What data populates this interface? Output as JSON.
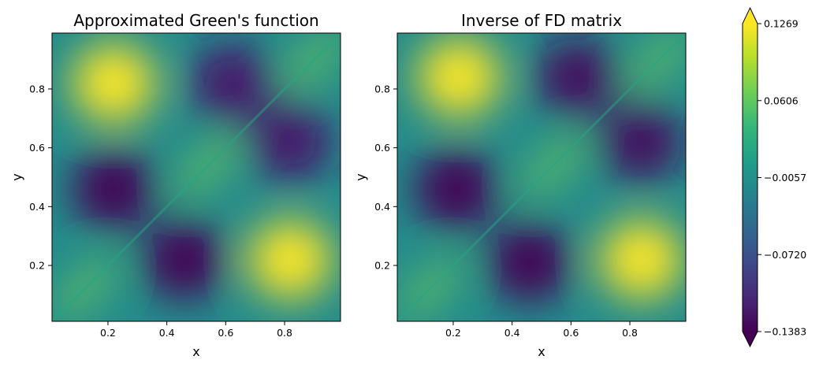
{
  "chart_data": [
    {
      "type": "heatmap",
      "title": "Approximated Green's function",
      "xlabel": "x",
      "ylabel": "y",
      "xlim": [
        0.01,
        0.99
      ],
      "ylim": [
        0.01,
        0.99
      ],
      "xticks": [
        0.2,
        0.4,
        0.6,
        0.8
      ],
      "yticks": [
        0.2,
        0.4,
        0.6,
        0.8
      ],
      "xtick_labels": [
        "0.2",
        "0.4",
        "0.6",
        "0.8"
      ],
      "ytick_labels": [
        "0.2",
        "0.4",
        "0.6",
        "0.8"
      ],
      "features": [
        {
          "x": 0.22,
          "y": 0.82,
          "value": 0.1269
        },
        {
          "x": 0.82,
          "y": 0.22,
          "value": 0.1269
        },
        {
          "x": 0.62,
          "y": 0.82,
          "value": -0.12
        },
        {
          "x": 0.82,
          "y": 0.62,
          "value": -0.12
        },
        {
          "x": 0.22,
          "y": 0.46,
          "value": -0.1383
        },
        {
          "x": 0.46,
          "y": 0.22,
          "value": -0.1383
        },
        {
          "x": 0.54,
          "y": 0.54,
          "value": 0.07
        },
        {
          "x": 0.12,
          "y": 0.12,
          "value": 0.07
        },
        {
          "x": 0.9,
          "y": 0.9,
          "value": 0.07
        }
      ]
    },
    {
      "type": "heatmap",
      "title": "Inverse of FD matrix",
      "xlabel": "x",
      "ylabel": "y",
      "xlim": [
        0.01,
        0.99
      ],
      "ylim": [
        0.01,
        0.99
      ],
      "xticks": [
        0.2,
        0.4,
        0.6,
        0.8
      ],
      "yticks": [
        0.2,
        0.4,
        0.6,
        0.8
      ],
      "xtick_labels": [
        "0.2",
        "0.4",
        "0.6",
        "0.8"
      ],
      "ytick_labels": [
        "0.2",
        "0.4",
        "0.6",
        "0.8"
      ],
      "features": [
        {
          "x": 0.22,
          "y": 0.84,
          "value": 0.1269
        },
        {
          "x": 0.84,
          "y": 0.22,
          "value": 0.1269
        },
        {
          "x": 0.62,
          "y": 0.84,
          "value": -0.13
        },
        {
          "x": 0.84,
          "y": 0.62,
          "value": -0.13
        },
        {
          "x": 0.21,
          "y": 0.46,
          "value": -0.1383
        },
        {
          "x": 0.46,
          "y": 0.21,
          "value": -0.1383
        },
        {
          "x": 0.54,
          "y": 0.54,
          "value": 0.07
        },
        {
          "x": 0.12,
          "y": 0.12,
          "value": 0.07
        },
        {
          "x": 0.9,
          "y": 0.9,
          "value": 0.07
        }
      ]
    }
  ],
  "colorbar": {
    "colormap": "viridis",
    "min": -0.1383,
    "max": 0.1269,
    "extend": "both",
    "ticks": [
      0.1269,
      0.0606,
      -0.0057,
      -0.072,
      -0.1383
    ],
    "tick_labels": [
      "0.1269",
      "0.0606",
      "−0.0057",
      "−0.0720",
      "−0.1383"
    ],
    "colors": [
      "#440154",
      "#482878",
      "#3e4989",
      "#31688e",
      "#26828e",
      "#1f9e89",
      "#35b779",
      "#6ece58",
      "#b5de2b",
      "#fde725"
    ]
  }
}
